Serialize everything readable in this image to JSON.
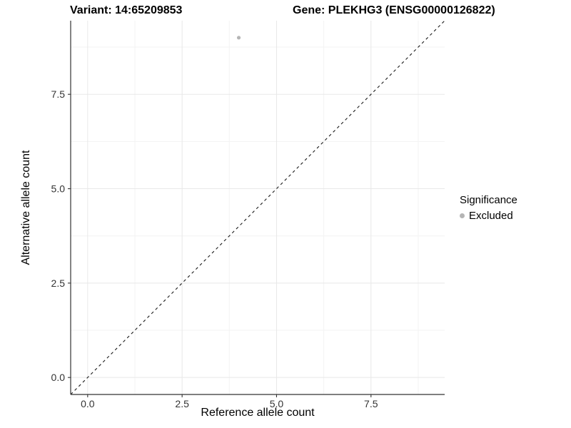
{
  "chart_data": {
    "type": "scatter",
    "title_variant": "Variant: 14:65209853",
    "title_gene": "Gene: PLEKHG3 (ENSG00000126822)",
    "xlabel": "Reference allele count",
    "ylabel": "Alternative allele count",
    "xlim": [
      -0.45,
      9.45
    ],
    "ylim": [
      -0.45,
      9.45
    ],
    "x_major_ticks": [
      0,
      2.5,
      5,
      7.5
    ],
    "x_tick_labels": [
      "0.0",
      "2.5",
      "5.0",
      "7.5"
    ],
    "x_minor_ticks": [
      1.25,
      3.75,
      6.25,
      8.75
    ],
    "y_major_ticks": [
      0,
      2.5,
      5,
      7.5
    ],
    "y_tick_labels": [
      "0.0",
      "2.5",
      "5.0",
      "7.5"
    ],
    "y_minor_ticks": [
      1.25,
      3.75,
      6.25,
      8.75
    ],
    "grid": "major+minor",
    "series": [
      {
        "name": "Excluded",
        "color": "#b5b5b5",
        "points": [
          [
            4,
            9
          ]
        ]
      }
    ],
    "identity_line": {
      "slope": 1,
      "intercept": 0,
      "style": "dashed",
      "color": "#1a1a1a"
    },
    "legend": {
      "position": "right",
      "title": "Significance",
      "items": [
        {
          "label": "Excluded",
          "color": "#b5b5b5"
        }
      ]
    }
  },
  "colors": {
    "background": "#ffffff",
    "grid_major": "#e8e8e8",
    "grid_minor": "#f3f3f3",
    "axis_line": "#333333",
    "tick_mark": "#333333",
    "tick_label": "#333333",
    "point": "#b5b5b5",
    "dashed_line": "#1a1a1a",
    "text": "#000000"
  }
}
